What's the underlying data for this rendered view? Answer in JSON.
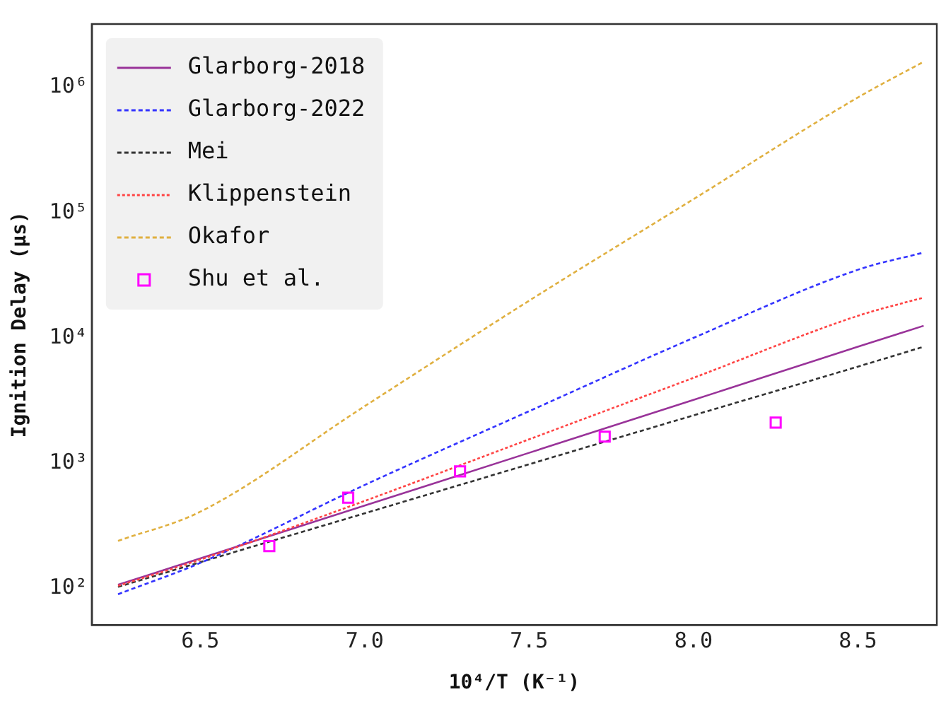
{
  "chart_data": {
    "type": "line",
    "xlabel": "10⁴/T (K⁻¹)",
    "ylabel": "Ignition Delay (μs)",
    "log": "y",
    "legend": "top left",
    "grid": false,
    "xlim": [
      6.17,
      8.74
    ],
    "xticks": [
      {
        "value": 6.5,
        "label": "6.5"
      },
      {
        "value": 7,
        "label": "7.0"
      },
      {
        "value": 7.5,
        "label": "7.5"
      },
      {
        "value": 8,
        "label": "8.0"
      },
      {
        "value": 8.5,
        "label": "8.5"
      }
    ],
    "ylim": [
      51,
      3200000
    ],
    "yticks": [
      {
        "value": 100,
        "label": "10²"
      },
      {
        "value": 1000,
        "label": "10³"
      },
      {
        "value": 10000,
        "label": "10⁴"
      },
      {
        "value": 100000,
        "label": "10⁵"
      },
      {
        "value": 1000000,
        "label": "10⁶"
      }
    ],
    "series": [
      {
        "name": "Glarborg-2018",
        "color": "#993399",
        "line_style": "solid",
        "marker": "none",
        "x": [
          6.25,
          6.5,
          7,
          7.5,
          8,
          8.5,
          8.7
        ],
        "values": [
          107,
          174,
          459,
          1210,
          3200,
          8500,
          12500
        ]
      },
      {
        "name": "Glarborg-2022",
        "color": "#3333ff",
        "line_style": "dashed",
        "marker": "none",
        "x": [
          6.25,
          6.5,
          7,
          7.5,
          8,
          8.5,
          8.7
        ],
        "values": [
          90,
          160,
          670,
          2600,
          10000,
          35000,
          48000
        ]
      },
      {
        "name": "Mei",
        "color": "#333333",
        "line_style": "dashed",
        "marker": "none",
        "x": [
          6.25,
          6.5,
          7,
          7.5,
          8,
          8.5,
          8.7
        ],
        "values": [
          103,
          162,
          398,
          980,
          2410,
          5900,
          8500
        ]
      },
      {
        "name": "Klippenstein",
        "color": "#ff4444",
        "line_style": "dotted",
        "marker": "none",
        "x": [
          6.25,
          6.5,
          7,
          7.5,
          8,
          8.5,
          8.7
        ],
        "values": [
          105,
          170,
          500,
          1550,
          4800,
          15000,
          21000
        ]
      },
      {
        "name": "Okafor",
        "color": "#e0b040",
        "line_style": "dashed",
        "marker": "none",
        "x": [
          6.25,
          6.5,
          7,
          7.5,
          8,
          8.5,
          8.7
        ],
        "values": [
          240,
          410,
          2850,
          19800,
          128000,
          830000,
          1600000
        ]
      },
      {
        "name": "Shu et al.",
        "type": "scatter",
        "color": "#ff00ff",
        "marker": "square",
        "x": [
          6.71,
          6.95,
          7.29,
          7.73,
          8.25
        ],
        "values": [
          218,
          530,
          860,
          1630,
          2110
        ]
      }
    ]
  }
}
